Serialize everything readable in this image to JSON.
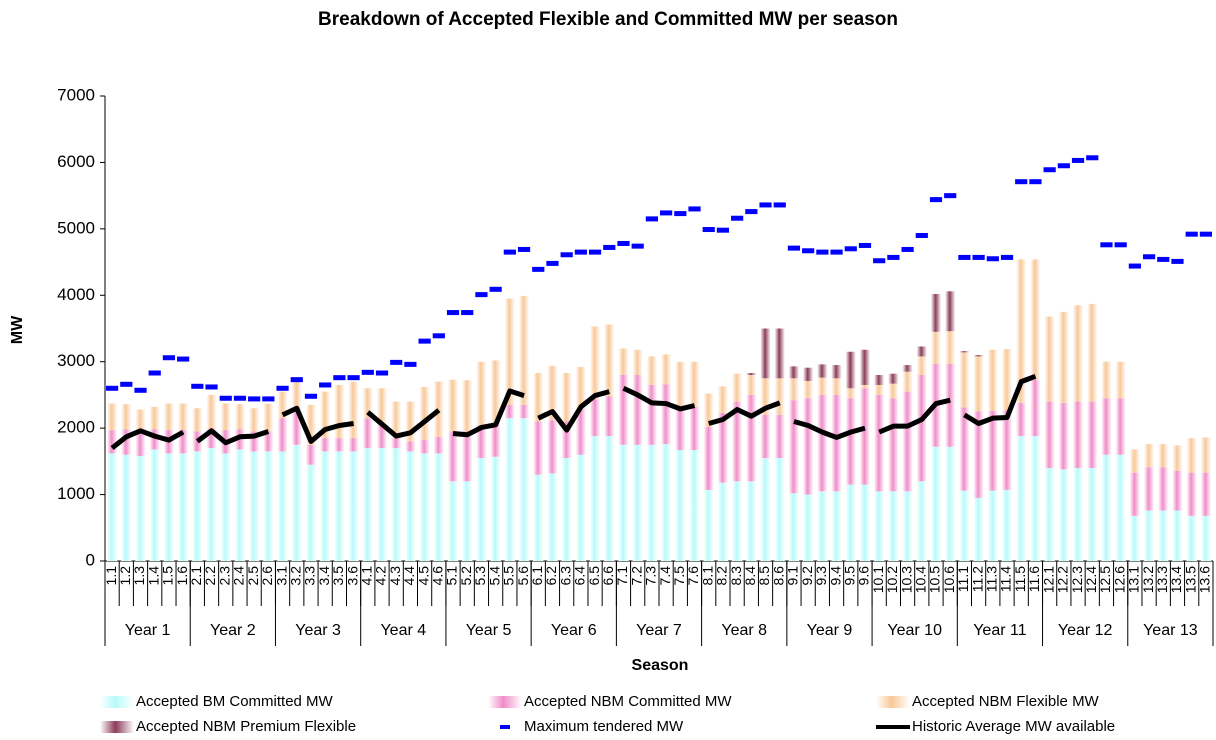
{
  "chart_data": {
    "type": "bar",
    "stacked": true,
    "title": "Breakdown of Accepted Flexible and Committed MW per season",
    "x_label": "Season",
    "y_label": "MW",
    "ylim": [
      0,
      7000
    ],
    "yticks": [
      0,
      1000,
      2000,
      3000,
      4000,
      5000,
      6000,
      7000
    ],
    "groups": [
      "Year 1",
      "Year 2",
      "Year 3",
      "Year 4",
      "Year 5",
      "Year 6",
      "Year 7",
      "Year 8",
      "Year 9",
      "Year 10",
      "Year 11",
      "Year 12",
      "Year 13"
    ],
    "categories": [
      "1.1",
      "1.2",
      "1.3",
      "1.4",
      "1.5",
      "1.6",
      "2.1",
      "2.2",
      "2.3",
      "2.4",
      "2.5",
      "2.6",
      "3.1",
      "3.2",
      "3.3",
      "3.4",
      "3.5",
      "3.6",
      "4.1",
      "4.2",
      "4.3",
      "4.4",
      "4.5",
      "4.6",
      "5.1",
      "5.2",
      "5.3",
      "5.4",
      "5.5",
      "5.6",
      "6.1",
      "6.2",
      "6.3",
      "6.4",
      "6.5",
      "6.6",
      "7.1",
      "7.2",
      "7.3",
      "7.4",
      "7.5",
      "7.6",
      "8.1",
      "8.2",
      "8.3",
      "8.4",
      "8.5",
      "8.6",
      "9.1",
      "9.2",
      "9.3",
      "9.4",
      "9.5",
      "9.6",
      "10.1",
      "10.2",
      "10.3",
      "10.4",
      "10.5",
      "10.6",
      "11.1",
      "11.2",
      "11.3",
      "11.4",
      "11.5",
      "11.6",
      "12.1",
      "12.2",
      "12.3",
      "12.4",
      "12.5",
      "12.6",
      "13.1",
      "13.2",
      "13.3",
      "13.4",
      "13.5",
      "13.6"
    ],
    "series": [
      {
        "name": "Accepted BM Committed MW",
        "type": "bar",
        "color": "#b8fafa",
        "values": [
          1620,
          1600,
          1580,
          1680,
          1620,
          1620,
          1650,
          1700,
          1620,
          1680,
          1650,
          1650,
          1650,
          1750,
          1450,
          1650,
          1650,
          1650,
          1700,
          1700,
          1700,
          1650,
          1620,
          1620,
          1200,
          1200,
          1550,
          1570,
          2150,
          2150,
          1300,
          1320,
          1550,
          1600,
          1880,
          1880,
          1750,
          1750,
          1750,
          1760,
          1670,
          1670,
          1070,
          1180,
          1200,
          1200,
          1550,
          1550,
          1020,
          1000,
          1050,
          1050,
          1150,
          1150,
          1050,
          1050,
          1050,
          1200,
          1720,
          1720,
          1060,
          950,
          1060,
          1070,
          1880,
          1880,
          1400,
          1380,
          1400,
          1400,
          1600,
          1600,
          680,
          760,
          760,
          760,
          680,
          680
        ]
      },
      {
        "name": "Accepted NBM Committed MW",
        "type": "bar",
        "color": "#f08cc8",
        "values": [
          350,
          380,
          400,
          300,
          350,
          350,
          300,
          300,
          350,
          300,
          300,
          300,
          500,
          550,
          300,
          200,
          200,
          200,
          450,
          350,
          150,
          150,
          200,
          250,
          750,
          750,
          500,
          500,
          200,
          200,
          800,
          800,
          550,
          700,
          550,
          600,
          1050,
          1050,
          900,
          900,
          650,
          650,
          950,
          1050,
          1200,
          1300,
          650,
          650,
          1400,
          1450,
          1450,
          1450,
          1300,
          1450,
          1450,
          1400,
          1500,
          1600,
          1250,
          1250,
          1250,
          1300,
          1200,
          1200,
          500,
          850,
          1000,
          1000,
          1000,
          1000,
          850,
          850,
          650,
          650,
          650,
          600,
          650,
          650
        ]
      },
      {
        "name": "Accepted NBM Flexible MW",
        "type": "bar",
        "color": "#f8c898",
        "values": [
          400,
          380,
          300,
          340,
          400,
          400,
          350,
          500,
          400,
          380,
          350,
          420,
          400,
          400,
          600,
          700,
          800,
          850,
          450,
          550,
          550,
          600,
          800,
          830,
          780,
          770,
          950,
          950,
          1600,
          1640,
          730,
          820,
          730,
          620,
          1100,
          1080,
          400,
          380,
          430,
          450,
          680,
          680,
          500,
          400,
          420,
          300,
          550,
          550,
          330,
          260,
          260,
          250,
          150,
          50,
          150,
          220,
          300,
          280,
          480,
          490,
          830,
          830,
          920,
          920,
          2160,
          1810,
          1280,
          1370,
          1450,
          1470,
          550,
          550,
          350,
          350,
          350,
          380,
          520,
          530
        ]
      },
      {
        "name": "Accepted NBM Premium Flexible",
        "type": "bar",
        "color": "#8c3c5a",
        "values": [
          0,
          0,
          0,
          0,
          0,
          0,
          0,
          0,
          0,
          0,
          0,
          0,
          0,
          0,
          0,
          0,
          0,
          0,
          0,
          0,
          0,
          0,
          0,
          0,
          0,
          0,
          0,
          0,
          0,
          0,
          0,
          0,
          0,
          0,
          0,
          0,
          0,
          0,
          0,
          0,
          0,
          0,
          0,
          0,
          0,
          30,
          750,
          750,
          180,
          200,
          200,
          200,
          550,
          530,
          150,
          150,
          100,
          150,
          570,
          600,
          20,
          20,
          0,
          0,
          0,
          0,
          0,
          0,
          0,
          0,
          0,
          0,
          0,
          0,
          0,
          0,
          0,
          0
        ]
      },
      {
        "name": "Maximum tendered MW",
        "type": "marker",
        "color": "#0000ff",
        "values": [
          2600,
          2660,
          2570,
          2830,
          3060,
          3040,
          2630,
          2620,
          2450,
          2450,
          2440,
          2440,
          2600,
          2730,
          2480,
          2650,
          2760,
          2760,
          2840,
          2830,
          2990,
          2960,
          3310,
          3390,
          3740,
          3740,
          4010,
          4090,
          4650,
          4690,
          4390,
          4480,
          4610,
          4650,
          4650,
          4720,
          4780,
          4740,
          5150,
          5240,
          5230,
          5300,
          4990,
          4980,
          5160,
          5260,
          5360,
          5360,
          4710,
          4670,
          4650,
          4650,
          4700,
          4750,
          4520,
          4570,
          4690,
          4900,
          5440,
          5500,
          4570,
          4570,
          4550,
          4570,
          5710,
          5710,
          5890,
          5950,
          6030,
          6070,
          4760,
          4760,
          4440,
          4580,
          4540,
          4510,
          4920,
          4920
        ]
      },
      {
        "name": "Historic Average MW available",
        "type": "line",
        "color": "#000000",
        "values": [
          1700,
          1870,
          1960,
          1880,
          1820,
          1940,
          1800,
          1960,
          1780,
          1870,
          1880,
          1950,
          2200,
          2300,
          1800,
          1980,
          2040,
          2070,
          2240,
          2060,
          1880,
          1930,
          2100,
          2270,
          1920,
          1900,
          2010,
          2050,
          2560,
          2490,
          2150,
          2250,
          1970,
          2320,
          2490,
          2550,
          2600,
          2500,
          2380,
          2370,
          2290,
          2340,
          2070,
          2130,
          2280,
          2180,
          2300,
          2380,
          2100,
          2040,
          1940,
          1860,
          1940,
          2000,
          1940,
          2030,
          2030,
          2130,
          2370,
          2420,
          2200,
          2070,
          2150,
          2160,
          2700,
          2780,
          null,
          null,
          null,
          null,
          null,
          null,
          null,
          null,
          null,
          null,
          null,
          null
        ]
      }
    ]
  }
}
